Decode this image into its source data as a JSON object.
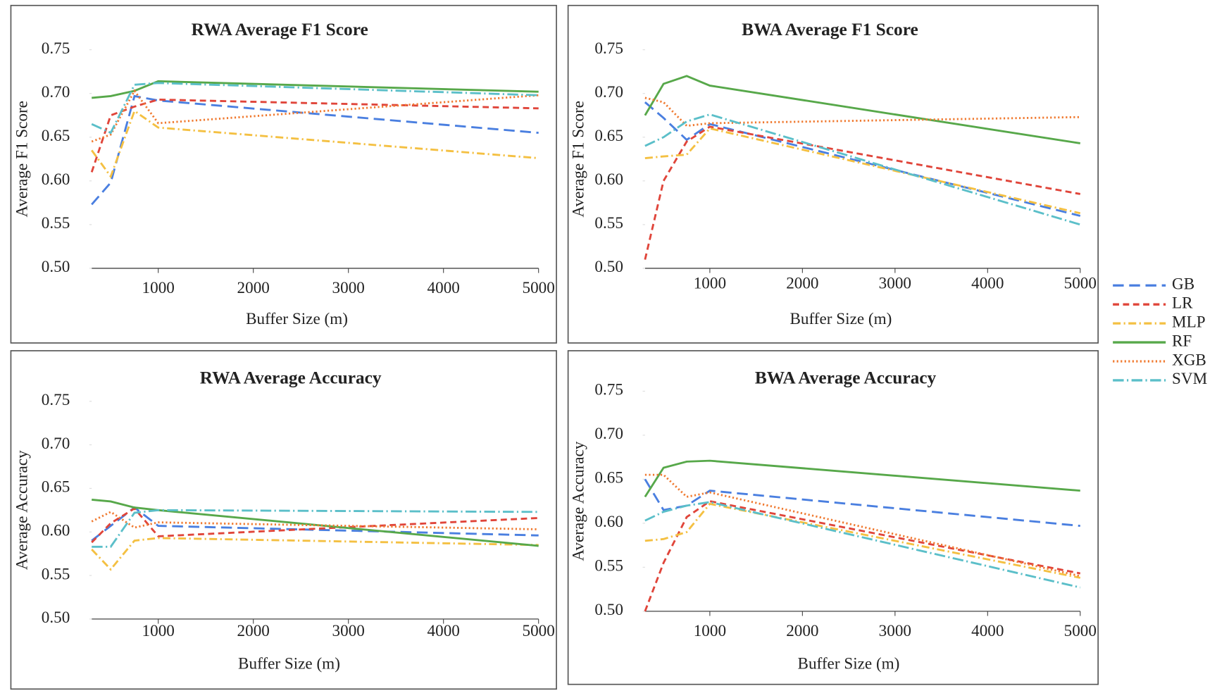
{
  "chart_data": [
    {
      "type": "line",
      "title": "RWA Average F1 Score",
      "x_label": "Buffer Size (m)",
      "y_label": "Average F1 Score",
      "x": [
        300,
        500,
        750,
        1000,
        5000
      ],
      "xlim": [
        300,
        5000
      ],
      "xticks": [
        1000,
        2000,
        3000,
        4000,
        5000
      ],
      "ylim": [
        0.5,
        0.75
      ],
      "yticks": [
        {
          "value": 0.5,
          "label": "0.50"
        },
        0.55,
        {
          "value": 0.6,
          "label": "0.60"
        },
        0.65,
        {
          "value": 0.7,
          "label": "0.70"
        },
        0.75
      ],
      "series": [
        {
          "name": "GB",
          "color": "#4a7fe0",
          "values": [
            0.573,
            0.598,
            0.697,
            0.692,
            0.655
          ]
        },
        {
          "name": "LR",
          "color": "#e0453a",
          "values": [
            0.61,
            0.675,
            0.685,
            0.693,
            0.683
          ]
        },
        {
          "name": "MLP",
          "color": "#f4c042",
          "values": [
            0.635,
            0.605,
            0.68,
            0.661,
            0.626
          ]
        },
        {
          "name": "RF",
          "color": "#57a84a",
          "values": [
            0.695,
            0.697,
            0.703,
            0.714,
            0.702
          ]
        },
        {
          "name": "XGB",
          "color": "#f07a30",
          "values": [
            0.645,
            0.653,
            0.703,
            0.666,
            0.698
          ]
        },
        {
          "name": "SVM",
          "color": "#5bbfc9",
          "values": [
            0.665,
            0.655,
            0.71,
            0.712,
            0.698
          ]
        }
      ]
    },
    {
      "type": "line",
      "title": "BWA Average F1 Score",
      "x_label": "Buffer Size (m)",
      "y_label": "Average F1 Score",
      "x": [
        300,
        500,
        750,
        1000,
        5000
      ],
      "xlim": [
        300,
        5000
      ],
      "xticks": [
        1000,
        2000,
        3000,
        4000,
        5000
      ],
      "ylim": [
        0.5,
        0.75
      ],
      "yticks": [
        {
          "value": 0.5,
          "label": "0.50"
        },
        0.55,
        {
          "value": 0.6,
          "label": "0.60"
        },
        0.65,
        {
          "value": 0.7,
          "label": "0.70"
        },
        0.75
      ],
      "series": [
        {
          "name": "GB",
          "color": "#4a7fe0",
          "values": [
            0.69,
            0.672,
            0.647,
            0.665,
            0.56
          ]
        },
        {
          "name": "LR",
          "color": "#e0453a",
          "values": [
            0.51,
            0.6,
            0.645,
            0.662,
            0.585
          ]
        },
        {
          "name": "MLP",
          "color": "#f4c042",
          "values": [
            0.626,
            0.628,
            0.63,
            0.66,
            0.563
          ]
        },
        {
          "name": "RF",
          "color": "#57a84a",
          "values": [
            0.675,
            0.711,
            0.72,
            0.709,
            0.643
          ]
        },
        {
          "name": "XGB",
          "color": "#f07a30",
          "values": [
            0.695,
            0.69,
            0.663,
            0.666,
            0.673
          ]
        },
        {
          "name": "SVM",
          "color": "#5bbfc9",
          "values": [
            0.64,
            0.65,
            0.668,
            0.676,
            0.55
          ]
        }
      ]
    },
    {
      "type": "line",
      "title": "RWA Average Accuracy",
      "x_label": "Buffer Size (m)",
      "y_label": "Average Accuracy",
      "x": [
        300,
        500,
        750,
        1000,
        5000
      ],
      "xlim": [
        300,
        5000
      ],
      "xticks": [
        1000,
        2000,
        3000,
        4000,
        5000
      ],
      "ylim": [
        0.5,
        0.75
      ],
      "yticks": [
        {
          "value": 0.5,
          "label": "0.50"
        },
        0.55,
        {
          "value": 0.6,
          "label": "0.60"
        },
        0.65,
        {
          "value": 0.7,
          "label": "0.70"
        },
        0.75
      ],
      "series": [
        {
          "name": "GB",
          "color": "#4a7fe0",
          "values": [
            0.59,
            0.607,
            0.628,
            0.607,
            0.596
          ]
        },
        {
          "name": "LR",
          "color": "#e0453a",
          "values": [
            0.588,
            0.61,
            0.627,
            0.595,
            0.616
          ]
        },
        {
          "name": "MLP",
          "color": "#f4c042",
          "values": [
            0.58,
            0.557,
            0.59,
            0.593,
            0.585
          ]
        },
        {
          "name": "RF",
          "color": "#57a84a",
          "values": [
            0.637,
            0.635,
            0.628,
            0.625,
            0.584
          ]
        },
        {
          "name": "XGB",
          "color": "#f07a30",
          "values": [
            0.612,
            0.623,
            0.605,
            0.611,
            0.603
          ]
        },
        {
          "name": "SVM",
          "color": "#5bbfc9",
          "values": [
            0.583,
            0.583,
            0.622,
            0.625,
            0.623
          ]
        }
      ]
    },
    {
      "type": "line",
      "title": "BWA Average Accuracy",
      "x_label": "Buffer Size (m)",
      "y_label": "Average Accuracy",
      "x": [
        300,
        500,
        750,
        1000,
        5000
      ],
      "xlim": [
        300,
        5000
      ],
      "xticks": [
        1000,
        2000,
        3000,
        4000,
        5000
      ],
      "ylim": [
        0.5,
        0.75
      ],
      "yticks": [
        {
          "value": 0.5,
          "label": "0.50"
        },
        0.55,
        {
          "value": 0.6,
          "label": "0.60"
        },
        0.65,
        {
          "value": 0.7,
          "label": "0.70"
        },
        0.75
      ],
      "series": [
        {
          "name": "GB",
          "color": "#4a7fe0",
          "values": [
            0.65,
            0.615,
            0.62,
            0.637,
            0.597
          ]
        },
        {
          "name": "LR",
          "color": "#e0453a",
          "values": [
            0.5,
            0.555,
            0.607,
            0.625,
            0.543
          ]
        },
        {
          "name": "MLP",
          "color": "#f4c042",
          "values": [
            0.58,
            0.582,
            0.59,
            0.622,
            0.538
          ]
        },
        {
          "name": "RF",
          "color": "#57a84a",
          "values": [
            0.63,
            0.663,
            0.67,
            0.671,
            0.637
          ]
        },
        {
          "name": "XGB",
          "color": "#f07a30",
          "values": [
            0.655,
            0.655,
            0.63,
            0.635,
            0.54
          ]
        },
        {
          "name": "SVM",
          "color": "#5bbfc9",
          "values": [
            0.603,
            0.613,
            0.62,
            0.624,
            0.527
          ]
        }
      ]
    }
  ]
}
